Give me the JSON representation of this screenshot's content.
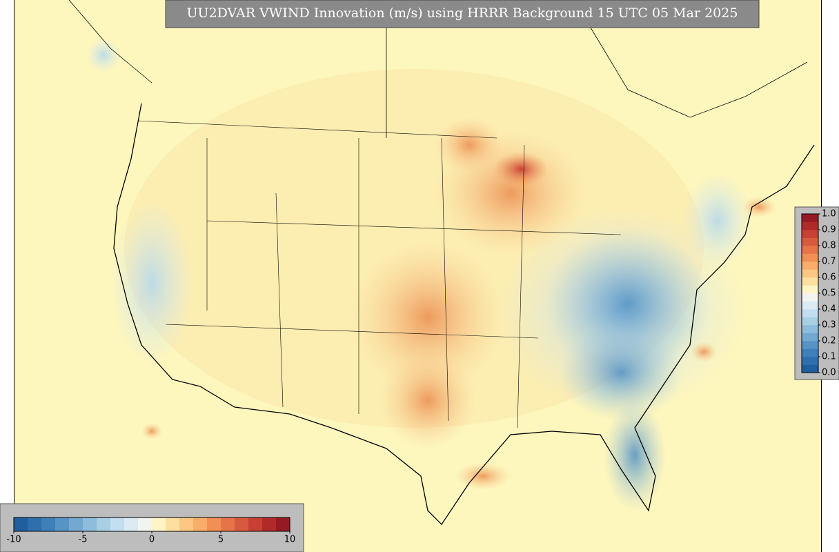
{
  "title": "UU2DVAR VWIND Innovation (m/s) using HRRR Background 15 UTC 05 Mar 2025",
  "bottom_colorbar": {
    "lim": [
      -10,
      10
    ],
    "ticks": [
      -10,
      -5,
      0,
      5,
      10
    ]
  },
  "right_colorbar": {
    "lim": [
      0,
      1
    ],
    "ticks": [
      {
        "value": 0,
        "label": "0.0"
      },
      {
        "value": 0.1,
        "label": "0.1"
      },
      {
        "value": 0.2,
        "label": "0.2"
      },
      {
        "value": 0.3,
        "label": "0.3"
      },
      {
        "value": 0.4,
        "label": "0.4"
      },
      {
        "value": 0.5,
        "label": "0.5"
      },
      {
        "value": 0.6,
        "label": "0.6"
      },
      {
        "value": 0.7,
        "label": "0.7"
      },
      {
        "value": 0.8,
        "label": "0.8"
      },
      {
        "value": 0.9,
        "label": "0.9"
      },
      {
        "value": 1,
        "label": "1.0"
      }
    ]
  }
}
